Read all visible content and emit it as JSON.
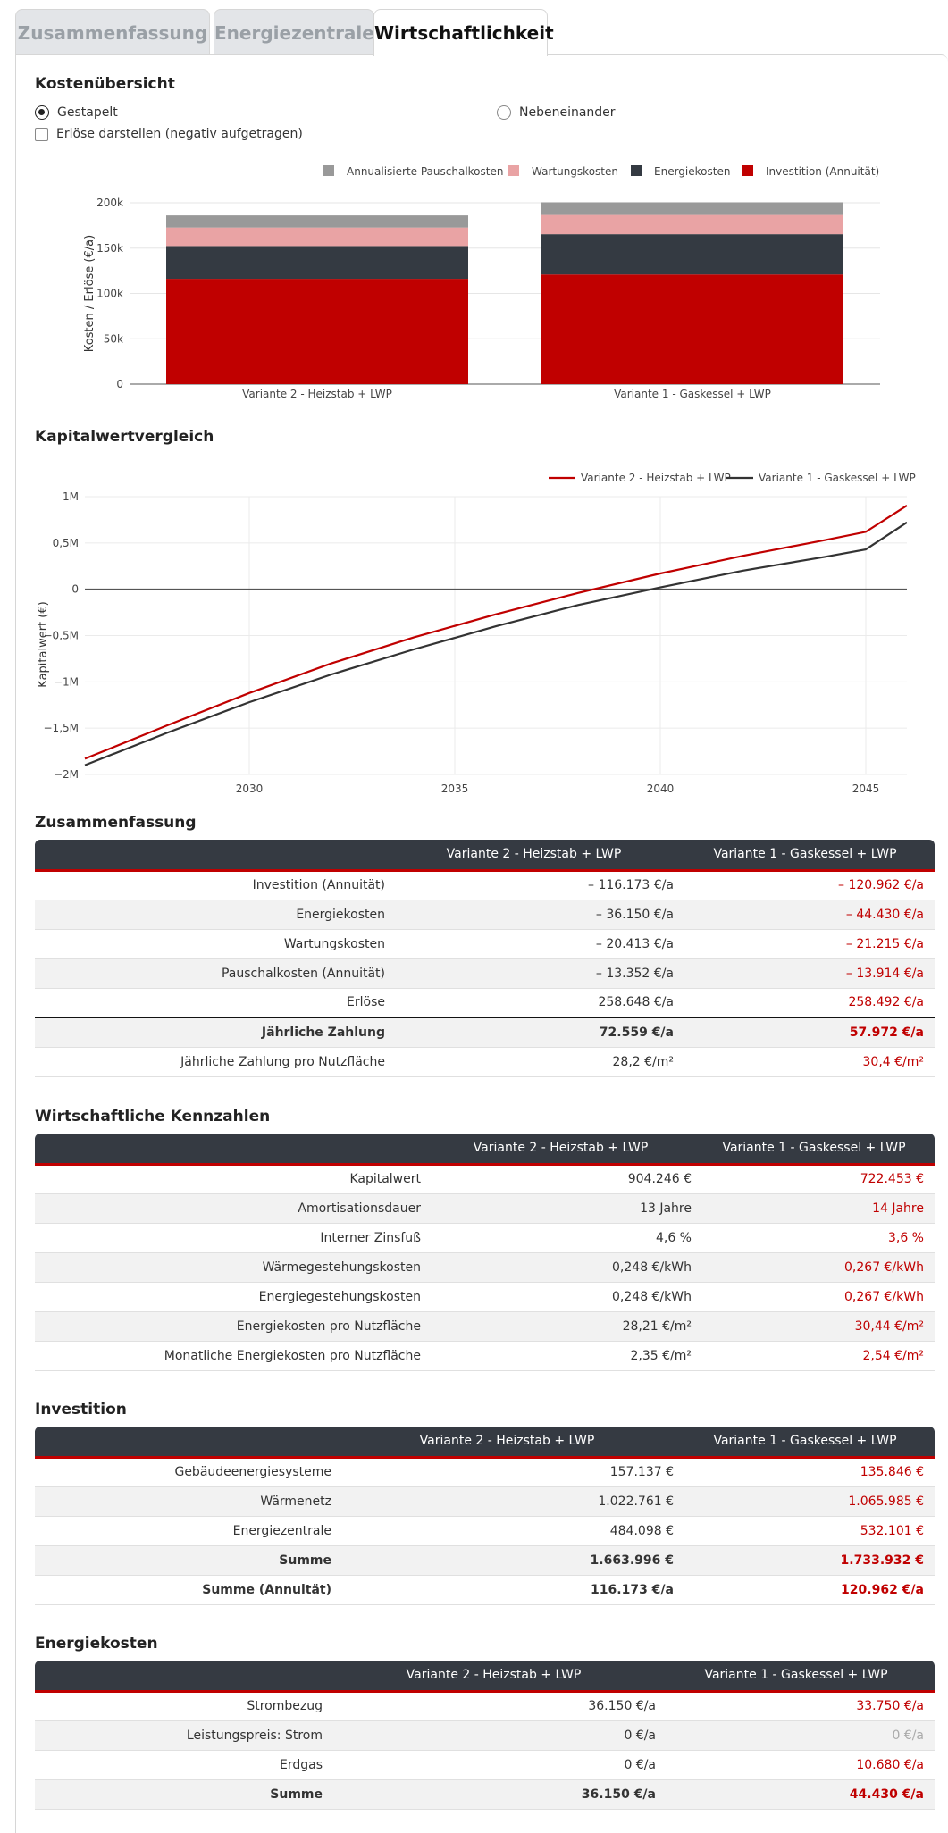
{
  "tabs": [
    {
      "label": "Zusammenfassung",
      "active": false
    },
    {
      "label": "Energiezentrale",
      "active": false
    },
    {
      "label": "Wirtschaftlichkeit",
      "active": true
    }
  ],
  "cost_overview": {
    "title": "Kostenübersicht",
    "radio_stacked": "Gestapelt",
    "radio_side": "Nebeneinander",
    "checkbox_revenue": "Erlöse darstellen (negativ aufgetragen)"
  },
  "chart_data": [
    {
      "type": "bar",
      "stacked": true,
      "categories": [
        "Variante 2 - Heizstab + LWP",
        "Variante 1 - Gaskessel + LWP"
      ],
      "series": [
        {
          "name": "Investition (Annuität)",
          "values": [
            116173,
            120962
          ],
          "color": "#c00000"
        },
        {
          "name": "Energiekosten",
          "values": [
            36150,
            44430
          ],
          "color": "#343a42"
        },
        {
          "name": "Wartungskosten",
          "values": [
            20413,
            21215
          ],
          "color": "#e9a3a4"
        },
        {
          "name": "Annualisierte Pauschalkosten",
          "values": [
            13352,
            13914
          ],
          "color": "#999999"
        }
      ],
      "legend_order": [
        "Annualisierte Pauschalkosten",
        "Wartungskosten",
        "Energiekosten",
        "Investition (Annuität)"
      ],
      "ylabel": "Kosten / Erlöse (€/a)",
      "ylim": [
        0,
        200000
      ],
      "yticks": [
        0,
        50000,
        100000,
        150000,
        200000
      ],
      "ytick_labels": [
        "0",
        "50k",
        "100k",
        "150k",
        "200k"
      ],
      "legend": "top-right",
      "grid": true
    },
    {
      "type": "line",
      "title": "Kapitalwertvergleich",
      "x": [
        2026,
        2028,
        2030,
        2032,
        2034,
        2036,
        2038,
        2040,
        2042,
        2044,
        2045,
        2046
      ],
      "series": [
        {
          "name": "Variante 2 - Heizstab + LWP",
          "color": "#c00000",
          "values": [
            -1830000,
            -1470000,
            -1120000,
            -800000,
            -520000,
            -270000,
            -40000,
            170000,
            360000,
            530000,
            620000,
            904246
          ]
        },
        {
          "name": "Variante 1 - Gaskessel + LWP",
          "color": "#333333",
          "values": [
            -1900000,
            -1550000,
            -1220000,
            -920000,
            -650000,
            -400000,
            -170000,
            20000,
            200000,
            350000,
            430000,
            722453
          ]
        }
      ],
      "ylabel": "Kapitalwert (€)",
      "xlim": [
        2026,
        2046
      ],
      "xticks": [
        2030,
        2035,
        2040,
        2045
      ],
      "ylim": [
        -2000000,
        1000000
      ],
      "yticks": [
        -2000000,
        -1500000,
        -1000000,
        -500000,
        0,
        500000,
        1000000
      ],
      "ytick_labels": [
        "−2M",
        "−1,5M",
        "−1M",
        "−0,5M",
        "0",
        "0,5M",
        "1M"
      ],
      "legend": "top-right",
      "grid": true
    }
  ],
  "summary": {
    "title": "Zusammenfassung",
    "headers": [
      "",
      "Variante 2 - Heizstab + LWP",
      "Variante 1 - Gaskessel + LWP"
    ],
    "rows": [
      {
        "label": "Investition (Annuität)",
        "v2": "– 116.173 €/a",
        "v1": "– 120.962 €/a"
      },
      {
        "label": "Energiekosten",
        "v2": "– 36.150 €/a",
        "v1": "– 44.430 €/a"
      },
      {
        "label": "Wartungskosten",
        "v2": "– 20.413 €/a",
        "v1": "– 21.215 €/a"
      },
      {
        "label": "Pauschalkosten (Annuität)",
        "v2": "– 13.352 €/a",
        "v1": "– 13.914 €/a"
      },
      {
        "label": "Erlöse",
        "v2": "258.648 €/a",
        "v1": "258.492 €/a"
      },
      {
        "label": "Jährliche Zahlung",
        "v2": "72.559 €/a",
        "v1": "57.972 €/a"
      },
      {
        "label": "Jährliche Zahlung pro Nutzfläche",
        "v2": "28,2 €/m²",
        "v1": "30,4 €/m²"
      }
    ]
  },
  "kpis": {
    "title": "Wirtschaftliche Kennzahlen",
    "headers": [
      "",
      "Variante 2 - Heizstab + LWP",
      "Variante 1 - Gaskessel + LWP"
    ],
    "rows": [
      {
        "label": "Kapitalwert",
        "v2": "904.246 €",
        "v1": "722.453 €"
      },
      {
        "label": "Amortisationsdauer",
        "v2": "13 Jahre",
        "v1": "14 Jahre"
      },
      {
        "label": "Interner Zinsfuß",
        "v2": "4,6 %",
        "v1": "3,6 %"
      },
      {
        "label": "Wärmegestehungskosten",
        "v2": "0,248 €/kWh",
        "v1": "0,267 €/kWh"
      },
      {
        "label": "Energiegestehungskosten",
        "v2": "0,248 €/kWh",
        "v1": "0,267 €/kWh"
      },
      {
        "label": "Energiekosten pro Nutzfläche",
        "v2": "28,21 €/m²",
        "v1": "30,44 €/m²"
      },
      {
        "label": "Monatliche Energiekosten pro Nutzfläche",
        "v2": "2,35 €/m²",
        "v1": "2,54 €/m²"
      }
    ]
  },
  "investment": {
    "title": "Investition",
    "headers": [
      "",
      "Variante 2 - Heizstab + LWP",
      "Variante 1 - Gaskessel + LWP"
    ],
    "rows": [
      {
        "label": "Gebäudeenergiesysteme",
        "v2": "157.137 €",
        "v1": "135.846 €"
      },
      {
        "label": "Wärmenetz",
        "v2": "1.022.761 €",
        "v1": "1.065.985 €"
      },
      {
        "label": "Energiezentrale",
        "v2": "484.098 €",
        "v1": "532.101 €"
      },
      {
        "label": "Summe",
        "v2": "1.663.996 €",
        "v1": "1.733.932 €"
      },
      {
        "label": "Summe (Annuität)",
        "v2": "116.173 €/a",
        "v1": "120.962 €/a"
      }
    ]
  },
  "energy_costs": {
    "title": "Energiekosten",
    "headers": [
      "",
      "Variante 2 - Heizstab + LWP",
      "Variante 1 - Gaskessel + LWP"
    ],
    "rows": [
      {
        "label": "Strombezug",
        "v2": "36.150 €/a",
        "v1": "33.750 €/a"
      },
      {
        "label": "Leistungspreis: Strom",
        "v2": "0 €/a",
        "v1": "0 €/a"
      },
      {
        "label": "Erdgas",
        "v2": "0 €/a",
        "v1": "10.680 €/a"
      },
      {
        "label": "Summe",
        "v2": "36.150 €/a",
        "v1": "44.430 €/a"
      }
    ]
  }
}
